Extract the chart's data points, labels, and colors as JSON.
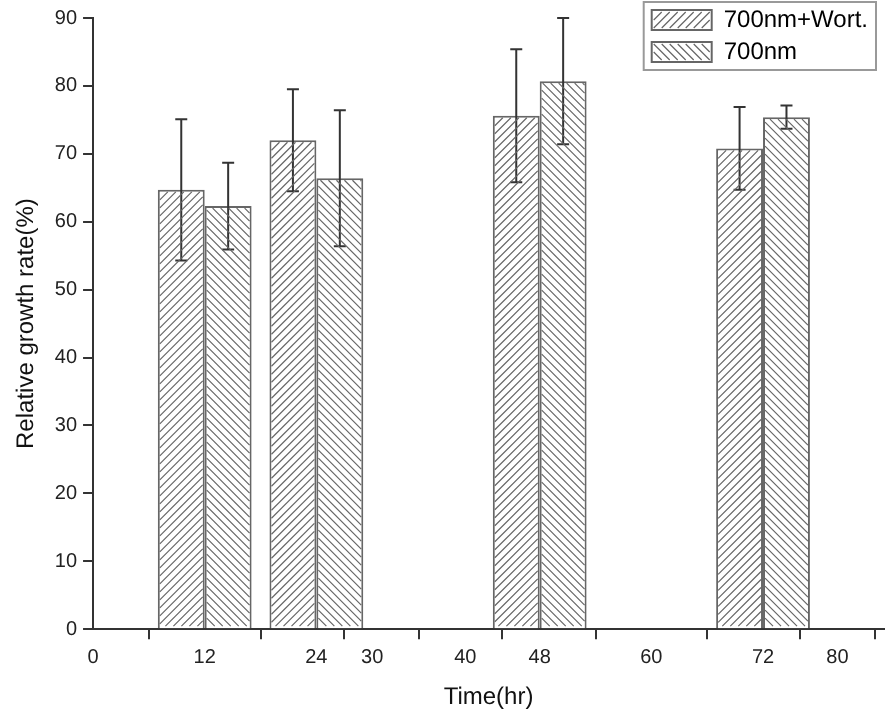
{
  "chart_data": {
    "type": "bar",
    "xlabel": "Time(hr)",
    "ylabel": "Relative growth rate(%)",
    "x": [
      12,
      24,
      48,
      72
    ],
    "series": [
      {
        "name": "700nm+Wort.",
        "color": "#666666",
        "values": [
          64.7,
          72.0,
          75.6,
          70.8
        ],
        "errors": [
          10.4,
          7.5,
          9.8,
          6.1
        ]
      },
      {
        "name": "700nm",
        "color": "#666666",
        "values": [
          62.3,
          66.4,
          80.7,
          75.4
        ],
        "errors": [
          6.4,
          10.0,
          9.3,
          1.7
        ]
      }
    ],
    "xlim": [
      0,
      85
    ],
    "xticks": [
      0,
      12,
      24,
      30,
      40,
      48,
      60,
      72,
      80
    ],
    "ylim": [
      0,
      90
    ],
    "yticks": [
      0,
      10,
      20,
      30,
      40,
      50,
      60,
      70,
      80,
      90
    ],
    "grid": false,
    "legend": "top right"
  }
}
